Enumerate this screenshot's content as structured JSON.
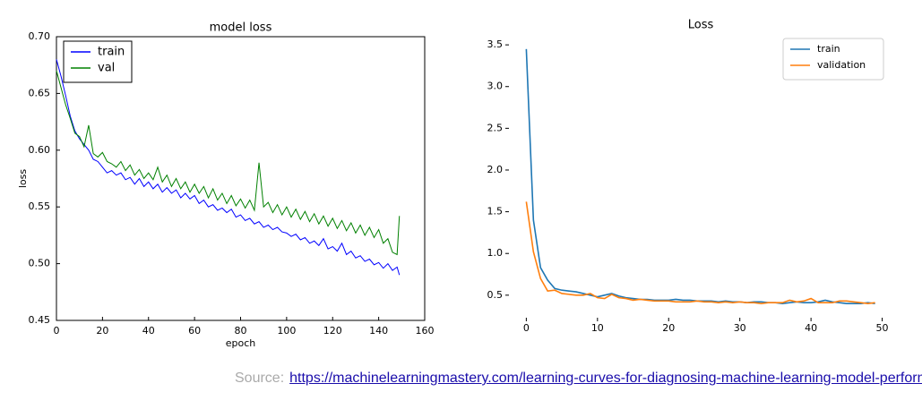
{
  "chart_data": [
    {
      "type": "line",
      "title": "model loss",
      "x_label": "epoch",
      "y_label": "loss",
      "x": [
        0,
        2,
        4,
        6,
        8,
        10,
        12,
        14,
        16,
        18,
        20,
        22,
        24,
        26,
        28,
        30,
        32,
        34,
        36,
        38,
        40,
        42,
        44,
        46,
        48,
        50,
        52,
        54,
        56,
        58,
        60,
        62,
        64,
        66,
        68,
        70,
        72,
        74,
        76,
        78,
        80,
        82,
        84,
        86,
        88,
        90,
        92,
        94,
        96,
        98,
        100,
        102,
        104,
        106,
        108,
        110,
        112,
        114,
        116,
        118,
        120,
        122,
        124,
        126,
        128,
        130,
        132,
        134,
        136,
        138,
        140,
        142,
        144,
        146,
        148,
        149
      ],
      "series": [
        {
          "name": "train",
          "color": "#0000ff",
          "values": [
            0.68,
            0.665,
            0.648,
            0.63,
            0.617,
            0.61,
            0.605,
            0.6,
            0.592,
            0.59,
            0.585,
            0.58,
            0.582,
            0.578,
            0.58,
            0.574,
            0.576,
            0.57,
            0.575,
            0.568,
            0.572,
            0.566,
            0.57,
            0.563,
            0.567,
            0.562,
            0.565,
            0.558,
            0.562,
            0.557,
            0.56,
            0.553,
            0.556,
            0.55,
            0.552,
            0.547,
            0.549,
            0.545,
            0.548,
            0.541,
            0.543,
            0.538,
            0.54,
            0.535,
            0.537,
            0.532,
            0.534,
            0.53,
            0.532,
            0.528,
            0.527,
            0.524,
            0.526,
            0.521,
            0.523,
            0.518,
            0.52,
            0.516,
            0.522,
            0.513,
            0.515,
            0.511,
            0.518,
            0.508,
            0.511,
            0.505,
            0.507,
            0.502,
            0.504,
            0.499,
            0.501,
            0.496,
            0.5,
            0.494,
            0.497,
            0.49
          ]
        },
        {
          "name": "val",
          "color": "#008000",
          "values": [
            0.67,
            0.655,
            0.64,
            0.628,
            0.615,
            0.612,
            0.603,
            0.622,
            0.597,
            0.594,
            0.598,
            0.59,
            0.588,
            0.585,
            0.59,
            0.582,
            0.587,
            0.578,
            0.583,
            0.575,
            0.58,
            0.574,
            0.585,
            0.572,
            0.578,
            0.568,
            0.575,
            0.566,
            0.572,
            0.563,
            0.57,
            0.562,
            0.568,
            0.558,
            0.566,
            0.556,
            0.562,
            0.553,
            0.56,
            0.551,
            0.557,
            0.549,
            0.556,
            0.547,
            0.589,
            0.55,
            0.554,
            0.545,
            0.552,
            0.543,
            0.55,
            0.541,
            0.548,
            0.539,
            0.546,
            0.537,
            0.544,
            0.535,
            0.542,
            0.533,
            0.54,
            0.531,
            0.538,
            0.529,
            0.536,
            0.527,
            0.534,
            0.525,
            0.532,
            0.523,
            0.53,
            0.518,
            0.522,
            0.51,
            0.508,
            0.542
          ]
        }
      ],
      "xlim": [
        0,
        160
      ],
      "xticks": [
        0,
        20,
        40,
        60,
        80,
        100,
        120,
        140,
        160
      ],
      "ylim": [
        0.45,
        0.7
      ],
      "yticks": [
        0.45,
        {
          "value": 0.5,
          "label": "0.50"
        },
        0.55,
        {
          "value": 0.6,
          "label": "0.60"
        },
        0.65,
        {
          "value": 0.7,
          "label": "0.70"
        }
      ],
      "legend": "upper left",
      "frame": true
    },
    {
      "type": "line",
      "title": "Loss",
      "x": [
        0,
        1,
        2,
        3,
        4,
        5,
        6,
        7,
        8,
        9,
        10,
        11,
        12,
        13,
        14,
        15,
        16,
        17,
        18,
        19,
        20,
        21,
        22,
        23,
        24,
        25,
        26,
        27,
        28,
        29,
        30,
        31,
        32,
        33,
        34,
        35,
        36,
        37,
        38,
        39,
        40,
        41,
        42,
        43,
        44,
        45,
        46,
        47,
        48,
        49
      ],
      "series": [
        {
          "name": "train",
          "color": "#1f77b4",
          "values": [
            3.45,
            1.4,
            0.83,
            0.68,
            0.58,
            0.56,
            0.55,
            0.54,
            0.52,
            0.5,
            0.48,
            0.5,
            0.52,
            0.49,
            0.47,
            0.46,
            0.45,
            0.45,
            0.44,
            0.44,
            0.44,
            0.45,
            0.44,
            0.44,
            0.43,
            0.43,
            0.43,
            0.42,
            0.43,
            0.42,
            0.42,
            0.41,
            0.42,
            0.42,
            0.41,
            0.41,
            0.4,
            0.41,
            0.42,
            0.41,
            0.41,
            0.42,
            0.44,
            0.42,
            0.41,
            0.4,
            0.4,
            0.4,
            0.41,
            0.4
          ]
        },
        {
          "name": "validation",
          "color": "#ff7f0e",
          "values": [
            1.62,
            1.02,
            0.7,
            0.55,
            0.56,
            0.52,
            0.51,
            0.5,
            0.5,
            0.52,
            0.47,
            0.46,
            0.51,
            0.47,
            0.46,
            0.44,
            0.45,
            0.44,
            0.43,
            0.43,
            0.43,
            0.42,
            0.42,
            0.42,
            0.43,
            0.42,
            0.42,
            0.41,
            0.42,
            0.41,
            0.42,
            0.41,
            0.41,
            0.4,
            0.41,
            0.41,
            0.41,
            0.44,
            0.42,
            0.43,
            0.46,
            0.41,
            0.41,
            0.41,
            0.43,
            0.43,
            0.42,
            0.41,
            0.4,
            0.41
          ]
        }
      ],
      "xlim": [
        -2.44,
        51.44
      ],
      "xticks": [
        0,
        10,
        20,
        30,
        40,
        50
      ],
      "ylim": [
        0.23,
        3.63
      ],
      "yticks": [
        0.5,
        {
          "value": 1,
          "label": "1.0"
        },
        1.5,
        {
          "value": 2,
          "label": "2.0"
        },
        2.5,
        {
          "value": 3,
          "label": "3.0"
        },
        3.5
      ],
      "legend": "upper right",
      "frame": false
    }
  ],
  "source": {
    "label": "Source:",
    "url": "https://machinelearningmastery.com/learning-curves-for-diagnosing-machine-learning-model-performance/"
  }
}
